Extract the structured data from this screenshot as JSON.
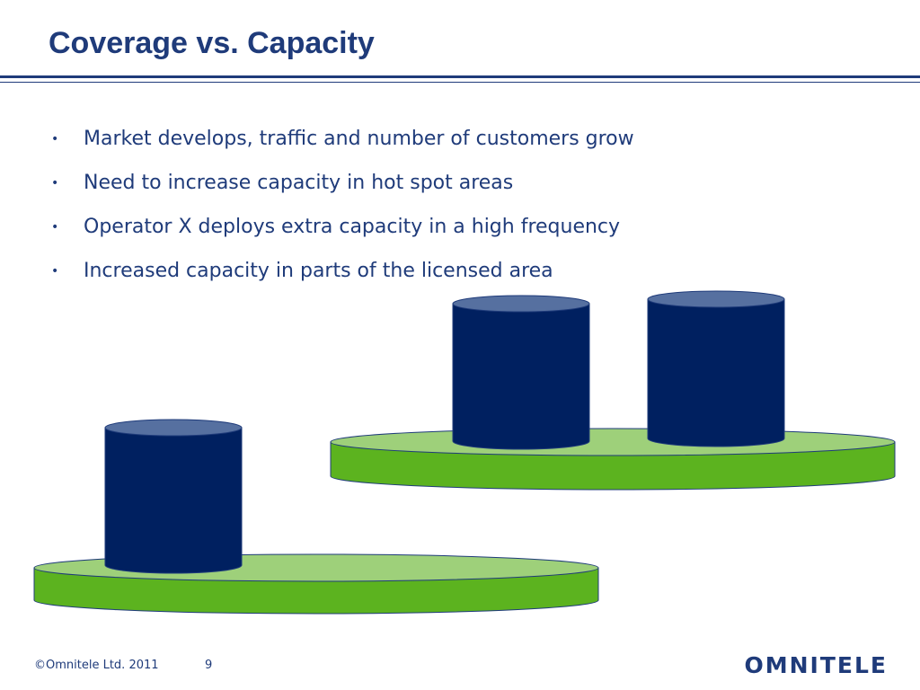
{
  "slide": {
    "title": "Coverage vs. Capacity",
    "bullets": [
      "Market develops, traffic and number of customers grow",
      "Need to increase capacity in hot spot areas",
      "Operator X deploys extra capacity in a high frequency",
      "Increased capacity in parts of the licensed area"
    ],
    "bullet_glyph": "•"
  },
  "diagram": {
    "colors": {
      "platform_top": "#9ed07a",
      "platform_side": "#5cb31f",
      "cylinder_body": "#002060",
      "cylinder_top": "#5670a0",
      "outline": "#1f3b7a"
    }
  },
  "footer": {
    "copyright": "©Omnitele Ltd. 2011",
    "page_number": "9",
    "logo": "omnitele"
  }
}
